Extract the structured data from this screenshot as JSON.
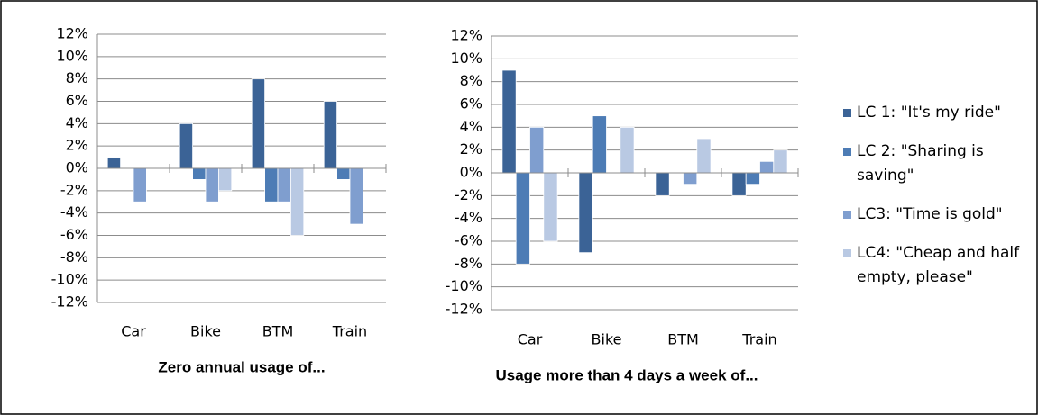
{
  "chart_data": [
    {
      "type": "bar",
      "xlabel": "Zero annual usage of...",
      "categories": [
        "Car",
        "Bike",
        "BTM",
        "Train"
      ],
      "series": [
        {
          "color": "#3b6396",
          "values": [
            1,
            4,
            8,
            6
          ]
        },
        {
          "color": "#4d7cb5",
          "values": [
            0,
            -1,
            -3,
            -1
          ]
        },
        {
          "color": "#7f9ecf",
          "values": [
            -3,
            -3,
            -3,
            -5
          ]
        },
        {
          "color": "#b9c9e3",
          "values": [
            0,
            -2,
            -6,
            0
          ]
        }
      ],
      "ylim": [
        -12,
        12
      ],
      "yticks": [
        {
          "value": -12,
          "label": "-12%"
        },
        {
          "value": -10,
          "label": "-10%"
        },
        {
          "value": -8,
          "label": "-8%"
        },
        {
          "value": -6,
          "label": "-6%"
        },
        {
          "value": -4,
          "label": "-4%"
        },
        {
          "value": -2,
          "label": "-2%"
        },
        {
          "value": 0,
          "label": "0%"
        },
        {
          "value": 2,
          "label": "2%"
        },
        {
          "value": 4,
          "label": "4%"
        },
        {
          "value": 6,
          "label": "6%"
        },
        {
          "value": 8,
          "label": "8%"
        },
        {
          "value": 10,
          "label": "10%"
        },
        {
          "value": 12,
          "label": "12%"
        }
      ],
      "grid": true
    },
    {
      "type": "bar",
      "xlabel": "Usage more than 4 days a week of...",
      "categories": [
        "Car",
        "Bike",
        "BTM",
        "Train"
      ],
      "series": [
        {
          "name": "LC 1: \"It's my ride\"",
          "color": "#3b6396",
          "values": [
            9,
            -7,
            -2,
            -2
          ]
        },
        {
          "name": "LC 2: \"Sharing is saving\"",
          "color": "#4d7cb5",
          "values": [
            -8,
            5,
            0,
            -1
          ]
        },
        {
          "name": "LC3: \"Time is gold\"",
          "color": "#7f9ecf",
          "values": [
            4,
            0,
            -1,
            1
          ]
        },
        {
          "name": "LC4: \"Cheap and half empty, please\"",
          "color": "#b9c9e3",
          "values": [
            -6,
            4,
            3,
            2
          ]
        }
      ],
      "ylim": [
        -12,
        12
      ],
      "yticks": [
        {
          "value": -12,
          "label": "-12%"
        },
        {
          "value": -10,
          "label": "-10%"
        },
        {
          "value": -8,
          "label": "-8%"
        },
        {
          "value": -6,
          "label": "-6%"
        },
        {
          "value": -4,
          "label": "-4%"
        },
        {
          "value": -2,
          "label": "-2%"
        },
        {
          "value": 0,
          "label": "0%"
        },
        {
          "value": 2,
          "label": "2%"
        },
        {
          "value": 4,
          "label": "4%"
        },
        {
          "value": 6,
          "label": "6%"
        },
        {
          "value": 8,
          "label": "8%"
        },
        {
          "value": 10,
          "label": "10%"
        },
        {
          "value": 12,
          "label": "12%"
        }
      ],
      "grid": true,
      "legend": "right"
    }
  ]
}
